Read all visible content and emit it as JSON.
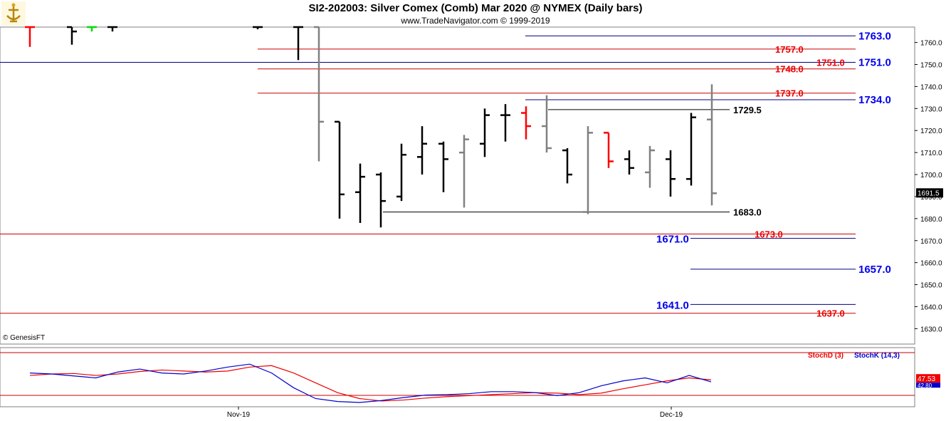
{
  "header": {
    "title": "SI2-202003:  Silver Comex (Comb) Mar 2020 @ NYMEX  (Daily bars)",
    "subtitle": "www.TradeNavigator.com © 1999-2019",
    "copyright": "© GenesisFT"
  },
  "chart_data": [
    {
      "type": "ohlc",
      "title": "SI2-202003:  Silver Comex (Comb) Mar 2020 @ NYMEX  (Daily bars)",
      "ylim": [
        1623,
        1767
      ],
      "y_ticks": [
        1630.0,
        1640.0,
        1650.0,
        1660.0,
        1670.0,
        1680.0,
        1690.0,
        1700.0,
        1710.0,
        1720.0,
        1730.0,
        1740.0,
        1750.0,
        1760.0
      ],
      "x_labels": [
        "Nov-19",
        "Dec-19"
      ],
      "last_price_label": "1691.5",
      "last_price": 1691.5,
      "colors": {
        "up": "#000000",
        "down": "#808080",
        "red": "#ff0000",
        "green": "#00dd00",
        "grid": "#cfcfcf",
        "red_line": "#cc0000",
        "blue_line": "#000080",
        "blue_text": "#0000ee",
        "red_text": "#ee0000"
      },
      "bars": [
        {
          "o": 1767,
          "h": 1767,
          "l": 1758,
          "c": 1767,
          "color": "red"
        },
        {
          "o": 1767,
          "h": 1767,
          "l": 1759,
          "c": 1765,
          "color": "up"
        },
        {
          "o": 1767,
          "h": 1767,
          "l": 1765,
          "c": 1767,
          "color": "green"
        },
        {
          "o": 1767,
          "h": 1767,
          "l": 1765,
          "c": 1767,
          "color": "up"
        },
        {
          "o": 1767,
          "h": 1767,
          "l": 1766,
          "c": 1767,
          "color": "up"
        },
        {
          "o": 1767,
          "h": 1767,
          "l": 1752,
          "c": 1767,
          "color": "up"
        },
        {
          "o": 1767,
          "h": 1767,
          "l": 1706,
          "c": 1724,
          "color": "down"
        },
        {
          "o": 1724,
          "h": 1724,
          "l": 1680,
          "c": 1691,
          "color": "up"
        },
        {
          "o": 1692,
          "h": 1705,
          "l": 1678,
          "c": 1699,
          "color": "up"
        },
        {
          "o": 1700,
          "h": 1701,
          "l": 1676,
          "c": 1688,
          "color": "up"
        },
        {
          "o": 1690,
          "h": 1714,
          "l": 1688,
          "c": 1709,
          "color": "up"
        },
        {
          "o": 1708,
          "h": 1722,
          "l": 1700,
          "c": 1714,
          "color": "up"
        },
        {
          "o": 1714,
          "h": 1715,
          "l": 1692,
          "c": 1707,
          "color": "up"
        },
        {
          "o": 1710,
          "h": 1718,
          "l": 1685,
          "c": 1716,
          "color": "down"
        },
        {
          "o": 1714,
          "h": 1730,
          "l": 1708,
          "c": 1727,
          "color": "up"
        },
        {
          "o": 1727,
          "h": 1732,
          "l": 1715,
          "c": 1727,
          "color": "up"
        },
        {
          "o": 1728,
          "h": 1731,
          "l": 1716,
          "c": 1722,
          "color": "red"
        },
        {
          "o": 1722,
          "h": 1736,
          "l": 1710,
          "c": 1712,
          "color": "down"
        },
        {
          "o": 1711,
          "h": 1712,
          "l": 1696,
          "c": 1700,
          "color": "up"
        },
        {
          "o": 1683,
          "h": 1722,
          "l": 1682,
          "c": 1719,
          "color": "down"
        },
        {
          "o": 1719,
          "h": 1719,
          "l": 1703,
          "c": 1706,
          "color": "red"
        },
        {
          "o": 1707,
          "h": 1711,
          "l": 1700,
          "c": 1703,
          "color": "up"
        },
        {
          "o": 1701,
          "h": 1713,
          "l": 1694,
          "c": 1711,
          "color": "down"
        },
        {
          "o": 1707,
          "h": 1711,
          "l": 1690,
          "c": 1698,
          "color": "up"
        },
        {
          "o": 1698,
          "h": 1728,
          "l": 1695,
          "c": 1726,
          "color": "up"
        },
        {
          "o": 1725,
          "h": 1741,
          "l": 1686,
          "c": 1691.5,
          "color": "down"
        }
      ],
      "levels": [
        {
          "value": 1763.0,
          "label": "1763.0",
          "color": "blue",
          "x1": 738,
          "x2": 1202,
          "label_pos": "right"
        },
        {
          "value": 1757.0,
          "label": "1757.0",
          "color": "red",
          "x1": 362,
          "x2": 1202,
          "label_pos": "mid"
        },
        {
          "value": 1751.0,
          "label": "1751.0",
          "color": "blue",
          "x1": 0,
          "x2": 1202,
          "label_pos": "right",
          "style": "strike"
        },
        {
          "value": 1748.0,
          "label": "1748.0",
          "color": "red",
          "x1": 362,
          "x2": 1202,
          "label_pos": "mid"
        },
        {
          "value": 1737.0,
          "label": "1737.0",
          "color": "red",
          "x1": 362,
          "x2": 1202,
          "label_pos": "mid"
        },
        {
          "value": 1734.0,
          "label": "1734.0",
          "color": "blue",
          "x1": 738,
          "x2": 1202,
          "label_pos": "right"
        },
        {
          "value": 1729.5,
          "label": "1729.5",
          "color": "black",
          "x1": 770,
          "x2": 1025,
          "label_pos": "end"
        },
        {
          "value": 1683.0,
          "label": "1683.0",
          "color": "black",
          "x1": 538,
          "x2": 1025,
          "label_pos": "end"
        },
        {
          "value": 1673.0,
          "label": "1673.0",
          "color": "red",
          "x1": 0,
          "x2": 1202,
          "label_pos": "mid2"
        },
        {
          "value": 1671.0,
          "label": "1671.0",
          "color": "blue",
          "x1": 970,
          "x2": 1202,
          "label_pos": "left"
        },
        {
          "value": 1657.0,
          "label": "1657.0",
          "color": "blue",
          "x1": 970,
          "x2": 1202,
          "label_pos": "right"
        },
        {
          "value": 1641.0,
          "label": "1641.0",
          "color": "blue",
          "x1": 970,
          "x2": 1202,
          "label_pos": "left"
        },
        {
          "value": 1637.0,
          "label": "1637.0",
          "color": "red",
          "x1": 0,
          "x2": 1202,
          "label_pos": "mid3"
        }
      ]
    },
    {
      "type": "line",
      "legend": [
        "StochD (3)",
        "StochK (14,3)"
      ],
      "last_value_label": "47.53",
      "last_value_label_2": "42.80",
      "ylim": [
        0,
        100
      ],
      "series": [
        {
          "name": "StochD (3)",
          "color": "#ee0000",
          "values": [
            55,
            58,
            59,
            55,
            58,
            63,
            66,
            64,
            62,
            64,
            72,
            75,
            60,
            40,
            20,
            8,
            3,
            5,
            9,
            12,
            14,
            16,
            18,
            20,
            19,
            16,
            19,
            28,
            36,
            44,
            50,
            46
          ]
        },
        {
          "name": "StochK (14,3)",
          "color": "#0000cc",
          "values": [
            60,
            58,
            54,
            50,
            62,
            68,
            60,
            58,
            64,
            72,
            78,
            60,
            30,
            8,
            2,
            0,
            4,
            10,
            15,
            16,
            18,
            22,
            22,
            20,
            14,
            20,
            34,
            44,
            50,
            40,
            55,
            42
          ]
        }
      ]
    }
  ]
}
